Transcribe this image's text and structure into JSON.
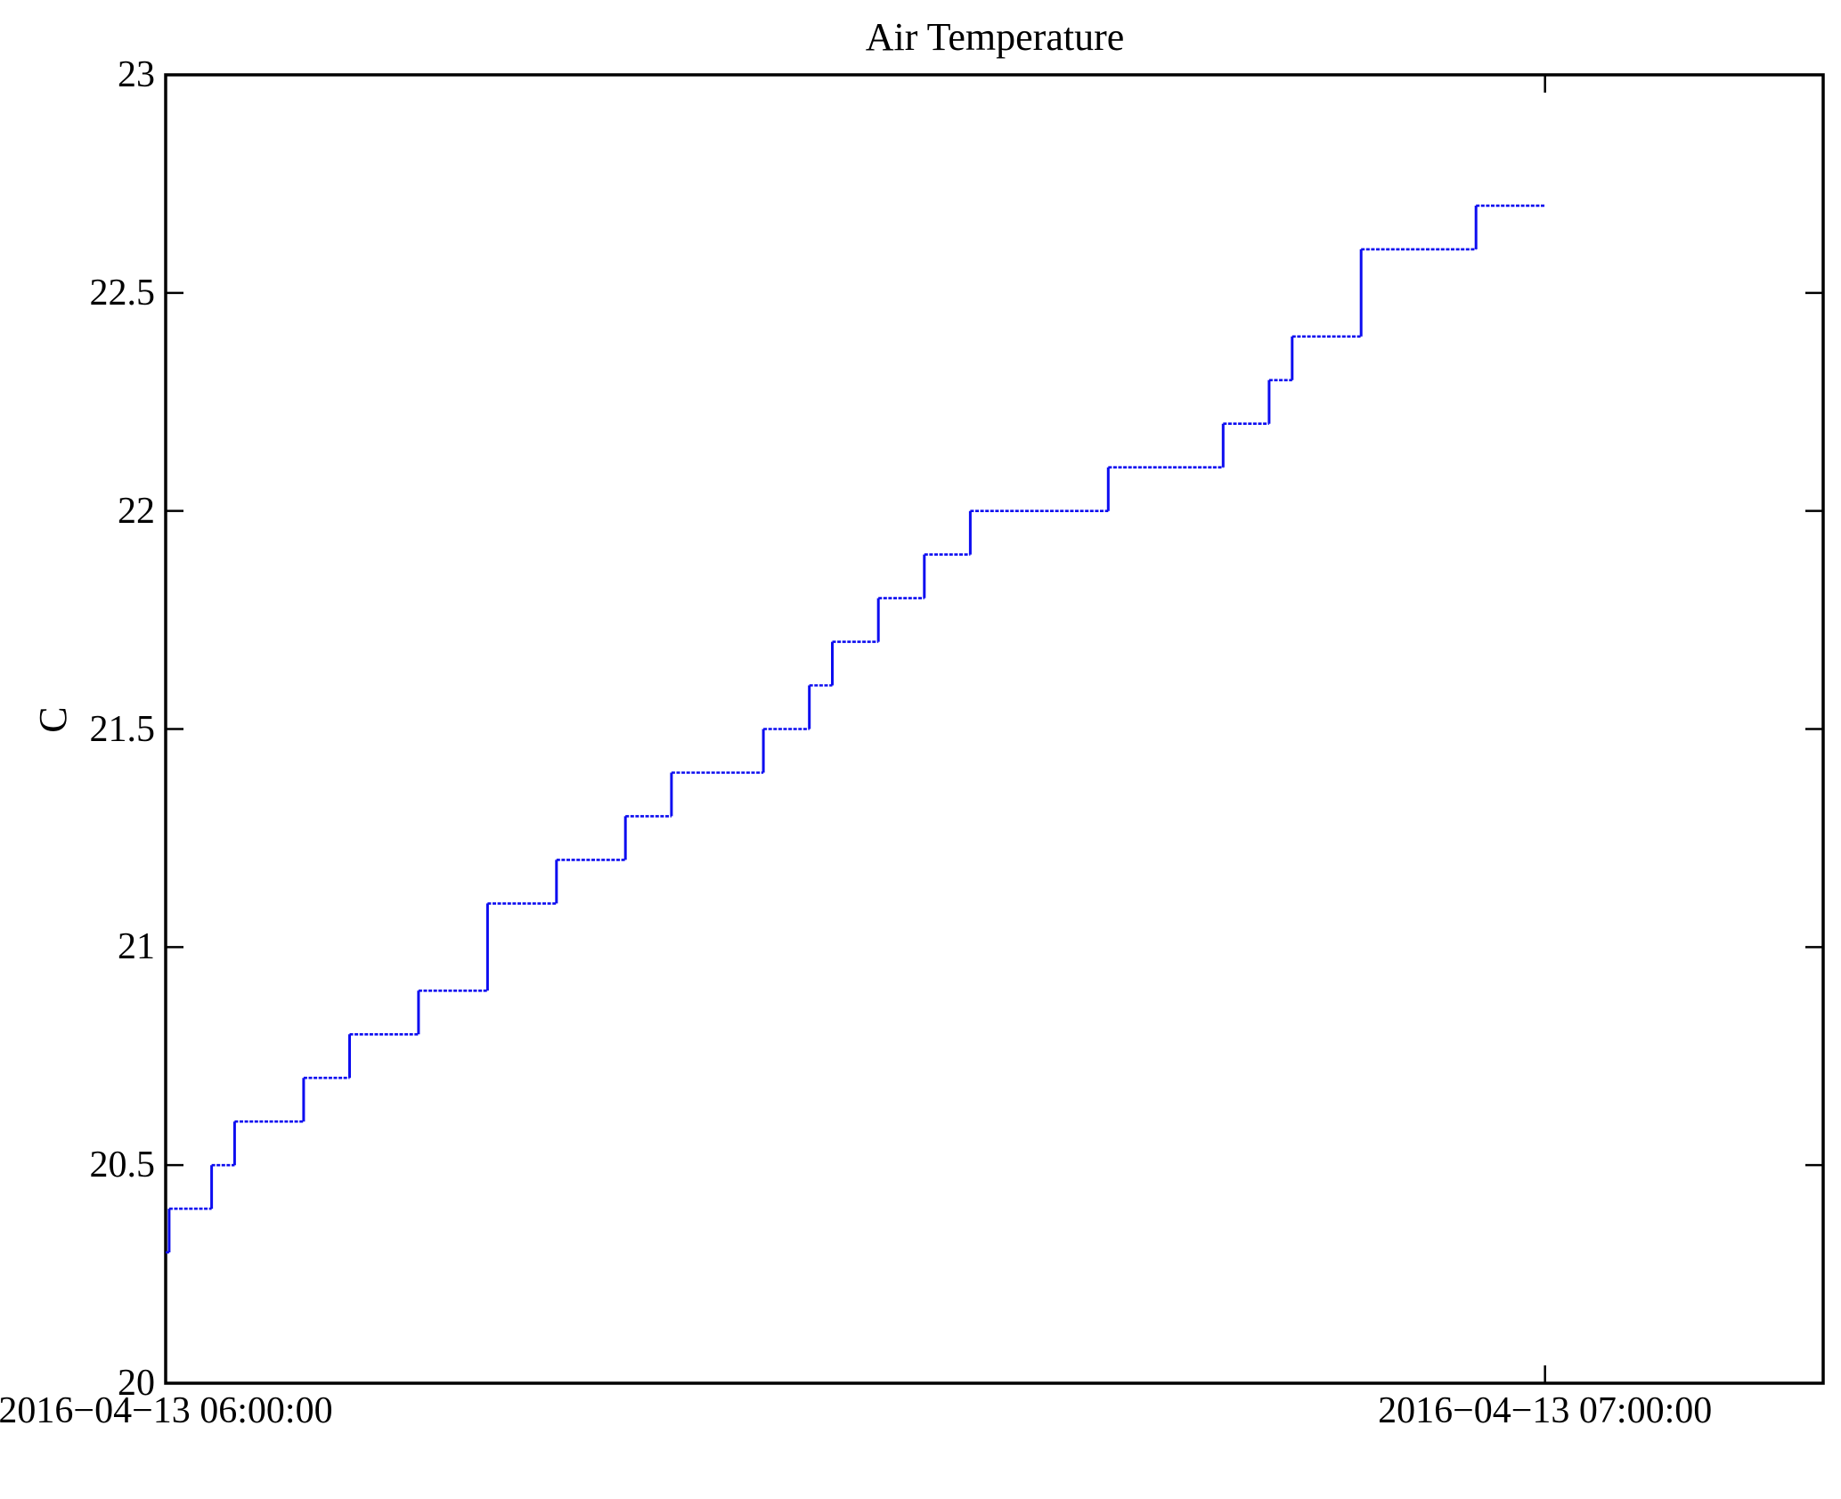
{
  "chart_data": {
    "type": "line",
    "line_style": "step-after",
    "title": "Air Temperature",
    "xlabel": "",
    "ylabel": "C",
    "grid": false,
    "legend": null,
    "ylim": [
      20,
      23
    ],
    "yticks": [
      20,
      20.5,
      21,
      21.5,
      22,
      22.5,
      23
    ],
    "ytick_labels": [
      "20",
      "20.5",
      "21",
      "21.5",
      "22",
      "22.5",
      "23"
    ],
    "xlim_minutes": [
      0,
      72.1
    ],
    "xticks_minutes": [
      0,
      60
    ],
    "xtick_labels": [
      "2016−04−13 06:00:00",
      "2016−04−13 07:00:00"
    ],
    "x_unit": "minutes after 2016-04-13 06:00:00",
    "series": [
      {
        "name": "Air Temperature",
        "unit": "C",
        "points": [
          [
            0,
            20.3
          ],
          [
            0.15,
            20.4
          ],
          [
            2,
            20.5
          ],
          [
            3,
            20.6
          ],
          [
            6,
            20.7
          ],
          [
            8,
            20.8
          ],
          [
            11,
            20.9
          ],
          [
            14,
            21.1
          ],
          [
            17,
            21.2
          ],
          [
            20,
            21.3
          ],
          [
            22,
            21.4
          ],
          [
            26,
            21.5
          ],
          [
            28,
            21.6
          ],
          [
            29,
            21.7
          ],
          [
            31,
            21.8
          ],
          [
            33,
            21.9
          ],
          [
            35,
            22.0
          ],
          [
            41,
            22.1
          ],
          [
            46,
            22.2
          ],
          [
            48,
            22.3
          ],
          [
            49,
            22.4
          ],
          [
            52,
            22.6
          ],
          [
            57,
            22.7
          ],
          [
            60,
            22.7
          ]
        ]
      }
    ],
    "colors": {
      "line": "#0d0df0",
      "axis": "#000000",
      "text": "#000000",
      "background": "#ffffff"
    }
  }
}
